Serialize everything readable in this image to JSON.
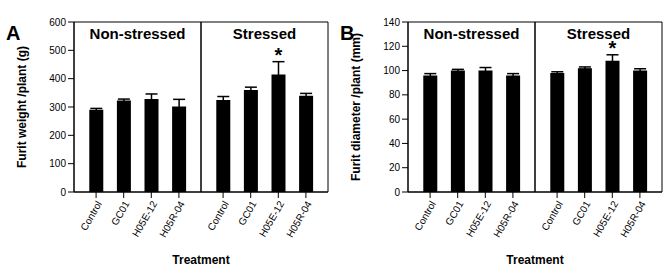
{
  "chart_data": [
    {
      "type": "bar",
      "panel": "A",
      "ylabel": "Furit weight /plant (g)",
      "xlabel": "Treatment",
      "categories": [
        "Control",
        "GC01",
        "H05E-12",
        "H05R-04"
      ],
      "color": "#000000",
      "ylim": [
        0,
        600
      ],
      "yticks": [
        0,
        100,
        200,
        300,
        400,
        500,
        600
      ],
      "groups": [
        {
          "name": "Non-stressed",
          "values": [
            290,
            323,
            328,
            302
          ],
          "errors": [
            5,
            5,
            18,
            25
          ]
        },
        {
          "name": "Stressed",
          "values": [
            325,
            360,
            415,
            340
          ],
          "errors": [
            12,
            10,
            45,
            8
          ]
        }
      ],
      "annotations": [
        {
          "group": "Stressed",
          "category": "H05E-12",
          "text": "*"
        }
      ]
    },
    {
      "type": "bar",
      "panel": "B",
      "ylabel": "Furit diameter /plant (mm)",
      "xlabel": "Treatment",
      "categories": [
        "Control",
        "GC01",
        "H05E-12",
        "H05R-04"
      ],
      "color": "#000000",
      "ylim": [
        0,
        140
      ],
      "yticks": [
        0,
        20,
        40,
        60,
        80,
        100,
        120,
        140
      ],
      "groups": [
        {
          "name": "Non-stressed",
          "values": [
            96,
            100,
            100,
            96
          ],
          "errors": [
            1.5,
            1,
            2.5,
            1.5
          ]
        },
        {
          "name": "Stressed",
          "values": [
            98,
            102,
            108,
            100
          ],
          "errors": [
            1,
            1,
            5,
            1.5
          ]
        }
      ],
      "annotations": [
        {
          "group": "Stressed",
          "category": "H05E-12",
          "text": "*"
        }
      ]
    }
  ]
}
